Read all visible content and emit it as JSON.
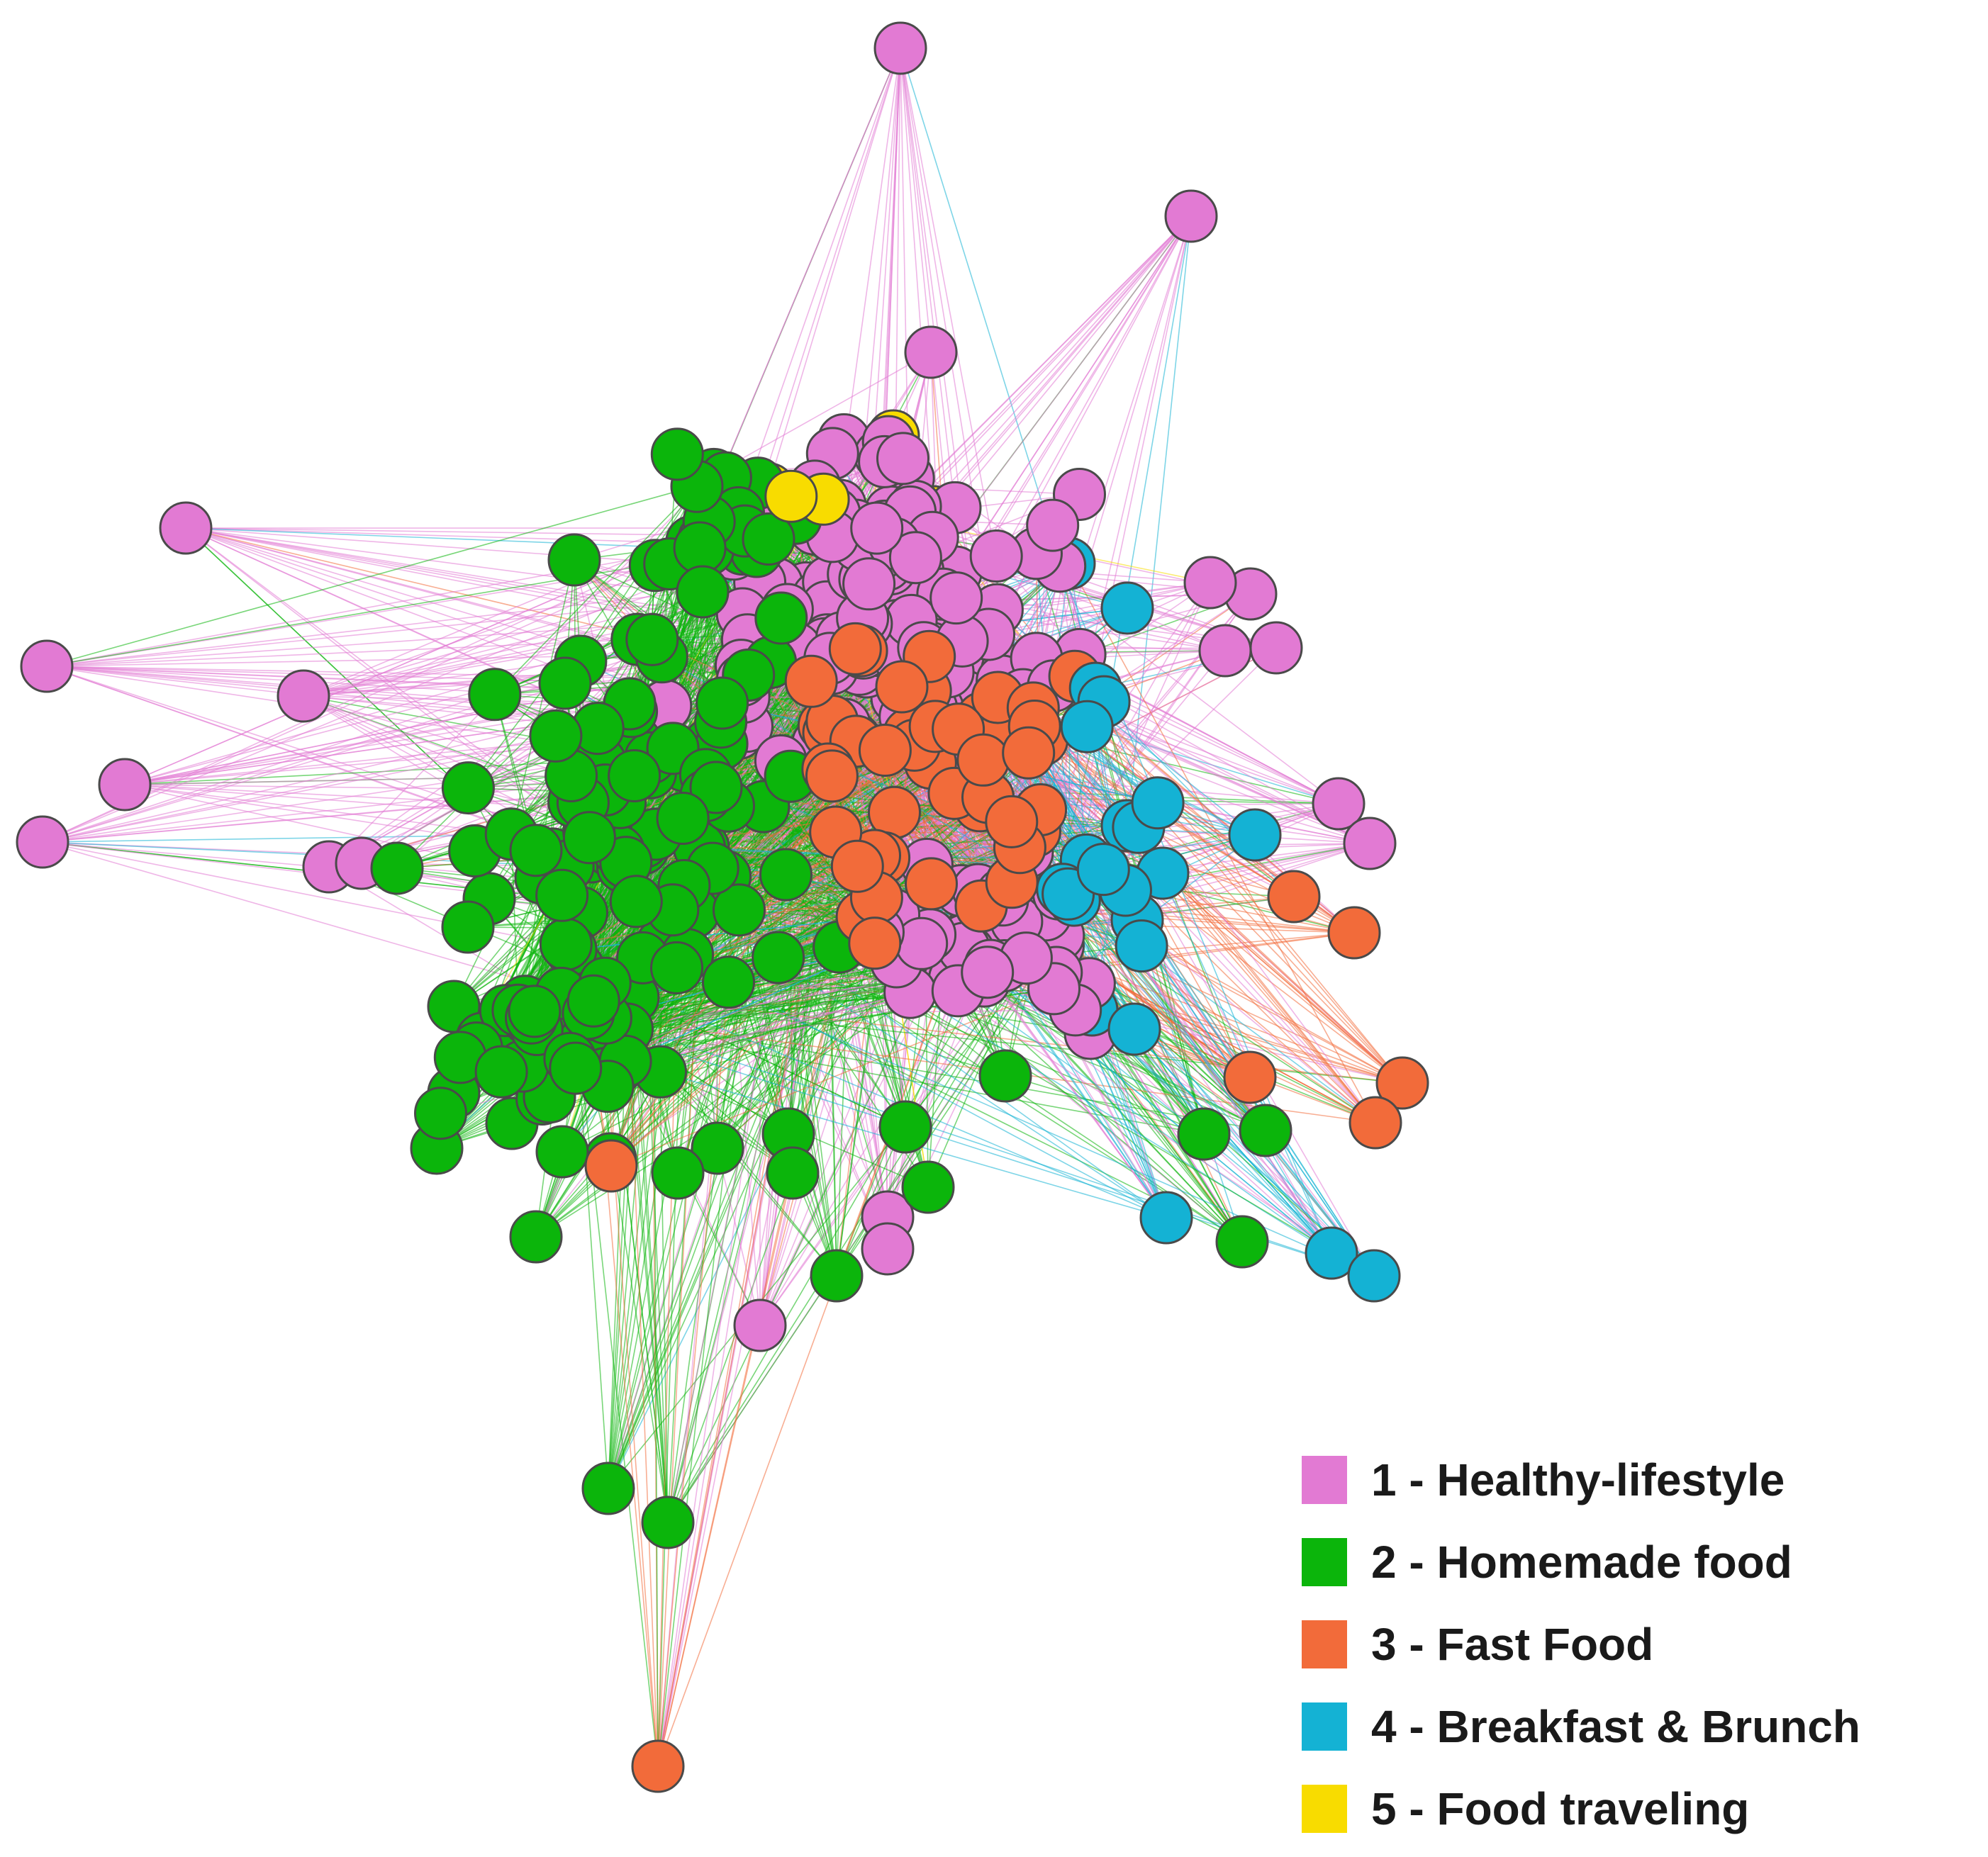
{
  "legend": {
    "items": [
      {
        "label": "1 - Healthy-lifestyle",
        "color": "#e27ad3"
      },
      {
        "label": "2 - Homemade food",
        "color": "#0bb50b"
      },
      {
        "label": "3 - Fast Food",
        "color": "#f26b3a"
      },
      {
        "label": "4 - Breakfast & Brunch",
        "color": "#14b2d4"
      },
      {
        "label": "5 - Food traveling",
        "color": "#f8dc00"
      }
    ]
  },
  "graph": {
    "node_stroke_color": "#4a4a4a",
    "edge_colors": [
      "#e27ad3",
      "#0bb50b",
      "#f26b3a",
      "#14b2d4",
      "#9aa04a"
    ]
  }
}
